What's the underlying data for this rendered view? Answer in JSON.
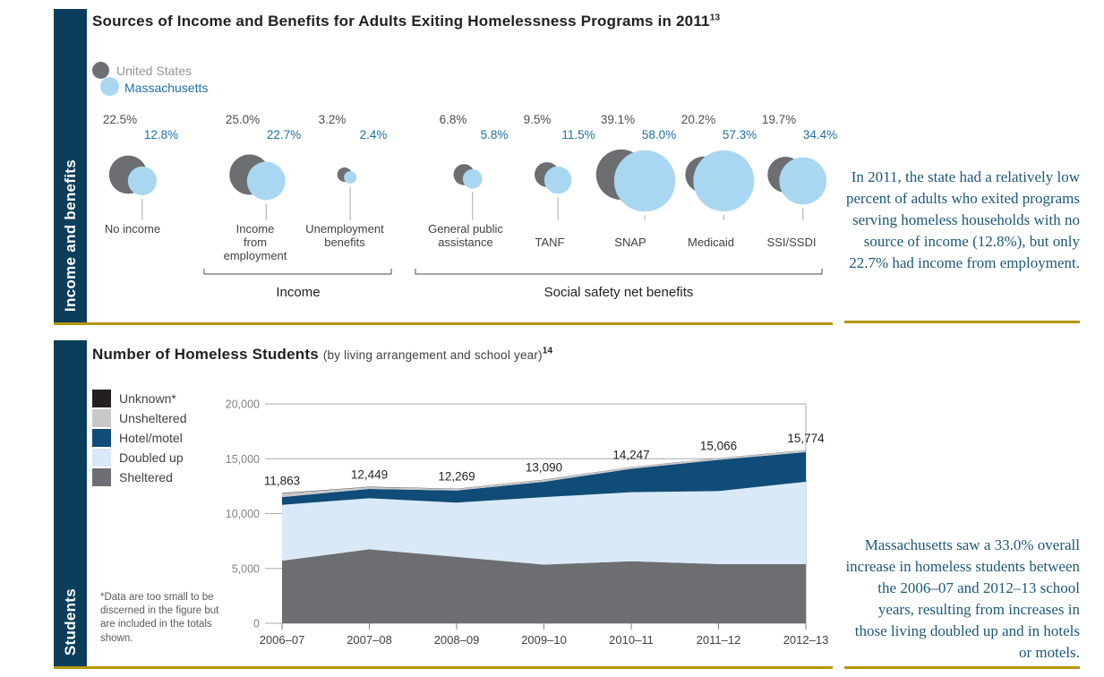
{
  "colors": {
    "sidebar": "#0a3e5c",
    "gold_rule": "#b6960f",
    "title_text": "#231f20",
    "callout_text": "#1b5878",
    "us_gray": "#6d6e71",
    "ma_blue": "#a9d7f2"
  },
  "section1": {
    "sidebar_label": "Income and benefits",
    "title": "Sources of Income and Benefits for Adults Exiting Homelessness Programs in 2011",
    "title_sup": "13",
    "legend": [
      {
        "label": "United States",
        "color": "#6d6e71"
      },
      {
        "label": "Massachusetts",
        "color": "#a9d7f2"
      }
    ],
    "callout": "In 2011, the state had a relatively low percent of adults who exited programs serving homeless households with no source of income (12.8%), but only 22.7% had income from employment."
  },
  "section2": {
    "sidebar_label": "Students",
    "title": "Number of Homeless Students",
    "subtitle": "(by living arrangement and school year)",
    "title_sup": "14",
    "footnote": "*Data are too small to be discerned in the figure but are included in the totals shown.",
    "callout": "Massachusetts saw a 33.0% overall increase in homeless students between the 2006–07 and 2012–13 school years, resulting from increases in those living doubled up and in hotels or motels."
  },
  "chart_data": [
    {
      "type": "scatter",
      "subtype": "paired-bubble",
      "title": "Sources of Income and Benefits for Adults Exiting Homelessness Programs in 2011",
      "value_format": "percent",
      "categories": [
        "No income",
        "Income from employment",
        "Unemployment benefits",
        "General public assistance",
        "TANF",
        "SNAP",
        "Medicaid",
        "SSI/SSDI"
      ],
      "category_label_lines": [
        [
          "No income"
        ],
        [
          "Income",
          "from",
          "employment"
        ],
        [
          "Unemployment",
          "benefits"
        ],
        [
          "General public",
          "assistance"
        ],
        [
          "",
          "TANF"
        ],
        [
          "",
          "SNAP"
        ],
        [
          "",
          "Medicaid"
        ],
        [
          "",
          "SSI/SSDI"
        ]
      ],
      "series": [
        {
          "name": "United States",
          "color": "#6d6e71",
          "values": [
            22.5,
            25.0,
            3.2,
            6.8,
            9.5,
            39.1,
            20.2,
            19.7
          ]
        },
        {
          "name": "Massachusetts",
          "color": "#a9d7f2",
          "values": [
            12.8,
            22.7,
            2.4,
            5.8,
            11.5,
            58.0,
            57.3,
            34.4
          ]
        }
      ],
      "groups": [
        {
          "label": "Income",
          "span": [
            "Income from employment",
            "Unemployment benefits"
          ]
        },
        {
          "label": "Social safety net benefits",
          "span": [
            "General public assistance",
            "SSI/SSDI"
          ]
        }
      ]
    },
    {
      "type": "area",
      "stacked": true,
      "title": "Number of Homeless Students",
      "subtitle": "(by living arrangement and school year)",
      "categories": [
        "2006–07",
        "2007–08",
        "2008–09",
        "2009–10",
        "2010–11",
        "2011–12",
        "2012–13"
      ],
      "series": [
        {
          "name": "Sheltered",
          "color": "#6d6e71",
          "values": [
            5700,
            6750,
            6050,
            5350,
            5650,
            5400,
            5400
          ]
        },
        {
          "name": "Doubled up",
          "color": "#d9e9f7",
          "values": [
            5100,
            4650,
            4950,
            6150,
            6300,
            6650,
            7500
          ]
        },
        {
          "name": "Hotel/motel",
          "color": "#0f4c78",
          "values": [
            700,
            850,
            1100,
            1400,
            2130,
            2850,
            2700
          ]
        },
        {
          "name": "Unsheltered",
          "color": "#c7c8ca",
          "values": [
            330,
            170,
            150,
            170,
            150,
            150,
            160
          ]
        },
        {
          "name": "Unknown*",
          "color": "#231f20",
          "values": [
            33,
            29,
            19,
            20,
            17,
            16,
            14
          ]
        }
      ],
      "series_values_note": "Sheltered/Doubled up/Hotel-motel/Unsheltered/Unknown splits estimated from figure; totals are labeled values",
      "totals": [
        11863,
        12449,
        12269,
        13090,
        14247,
        15066,
        15774
      ],
      "total_labels": [
        "11,863",
        "12,449",
        "12,269",
        "13,090",
        "14,247",
        "15,066",
        "15,774"
      ],
      "ylim": [
        0,
        20000
      ],
      "ytick_values": [
        0,
        5000,
        10000,
        15000,
        20000
      ],
      "ytick_labels": [
        "0",
        "5,000",
        "10,000",
        "15,000",
        "20,000"
      ],
      "grid": true,
      "legend_position": "left",
      "legend_order_top_to_bottom": [
        "Unknown*",
        "Unsheltered",
        "Hotel/motel",
        "Doubled up",
        "Sheltered"
      ]
    }
  ]
}
